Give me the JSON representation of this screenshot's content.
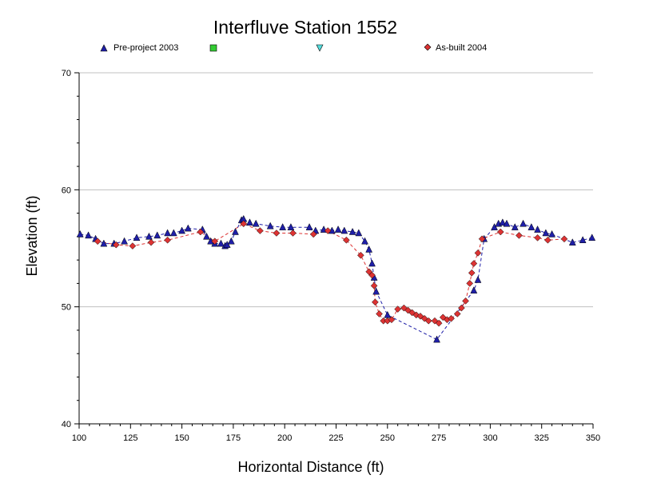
{
  "chart_data": {
    "type": "scatter",
    "title": "Interfluve Station 1552",
    "xlabel": "Horizontal Distance (ft)",
    "ylabel": "Elevation (ft)",
    "xlim": [
      100,
      350
    ],
    "ylim": [
      40,
      70
    ],
    "xticks": [
      "100",
      "125",
      "150",
      "175",
      "200",
      "225",
      "250",
      "275",
      "300",
      "325",
      "350"
    ],
    "yticks": [
      "40",
      "50",
      "60",
      "70"
    ],
    "grid": "horizontal",
    "legend_position": "top",
    "legend": [
      {
        "name": "Pre-project 2003",
        "marker": "triangle-up",
        "color": "#1f1fa8"
      },
      {
        "name": "",
        "marker": "square",
        "color": "#33cc33"
      },
      {
        "name": "",
        "marker": "triangle-down",
        "color": "#55dddd"
      },
      {
        "name": "As-built 2004",
        "marker": "diamond",
        "color": "#dd3333"
      }
    ],
    "series": [
      {
        "name": "Pre-project 2003",
        "marker": "triangle-up",
        "color": "#1f1fa8",
        "line_color": "#1f1fa8",
        "x": [
          100.5,
          104.5,
          108,
          112,
          117,
          122,
          128,
          134,
          138,
          143,
          146,
          150,
          153,
          160,
          162,
          164,
          166,
          169,
          171,
          172,
          174,
          176,
          179,
          180,
          183,
          186,
          193,
          199,
          203,
          212,
          215,
          219,
          223,
          226,
          229,
          233,
          236,
          239,
          241,
          242.5,
          243.5,
          244.5,
          250,
          274,
          292,
          294,
          297,
          302,
          304,
          306,
          308,
          312,
          316,
          320,
          323,
          327,
          330,
          340,
          345,
          349.5
        ],
        "y": [
          56.2,
          56.1,
          55.8,
          55.4,
          55.4,
          55.6,
          55.9,
          56,
          56.1,
          56.3,
          56.3,
          56.5,
          56.7,
          56.6,
          56,
          55.6,
          55.4,
          55.4,
          55.2,
          55.3,
          55.6,
          56.4,
          57.4,
          57.5,
          57.2,
          57.1,
          56.9,
          56.8,
          56.8,
          56.8,
          56.5,
          56.6,
          56.5,
          56.6,
          56.5,
          56.4,
          56.3,
          55.6,
          54.9,
          53.7,
          52.5,
          51.3,
          49.3,
          47.2,
          51.4,
          52.3,
          55.8,
          56.8,
          57.1,
          57.2,
          57.1,
          56.8,
          57.1,
          56.8,
          56.6,
          56.3,
          56.2,
          55.5,
          55.7,
          55.9
        ]
      },
      {
        "name": "As-built 2004",
        "marker": "diamond",
        "color": "#dd3333",
        "line_color": "#dd3333",
        "x": [
          109,
          118,
          126,
          135,
          143,
          159,
          166,
          180,
          188,
          196,
          204,
          214,
          221,
          230,
          237,
          241,
          242.5,
          243.5,
          244,
          246,
          248,
          250,
          252,
          255,
          258,
          260,
          262,
          264,
          266,
          268,
          270,
          273,
          275,
          277,
          279,
          281,
          284,
          286,
          288,
          290,
          291,
          292,
          294,
          296,
          305,
          314,
          323,
          328,
          336
        ],
        "y": [
          55.6,
          55.3,
          55.2,
          55.5,
          55.7,
          56.4,
          55.6,
          57.1,
          56.5,
          56.3,
          56.3,
          56.2,
          56.5,
          55.7,
          54.4,
          53,
          52.7,
          51.8,
          50.4,
          49.4,
          48.8,
          48.8,
          48.9,
          49.8,
          49.9,
          49.7,
          49.5,
          49.3,
          49.2,
          49,
          48.8,
          48.8,
          48.6,
          49.1,
          48.9,
          49,
          49.4,
          49.9,
          50.5,
          52,
          52.9,
          53.7,
          54.6,
          55.8,
          56.4,
          56.1,
          55.9,
          55.7,
          55.8
        ]
      }
    ]
  }
}
